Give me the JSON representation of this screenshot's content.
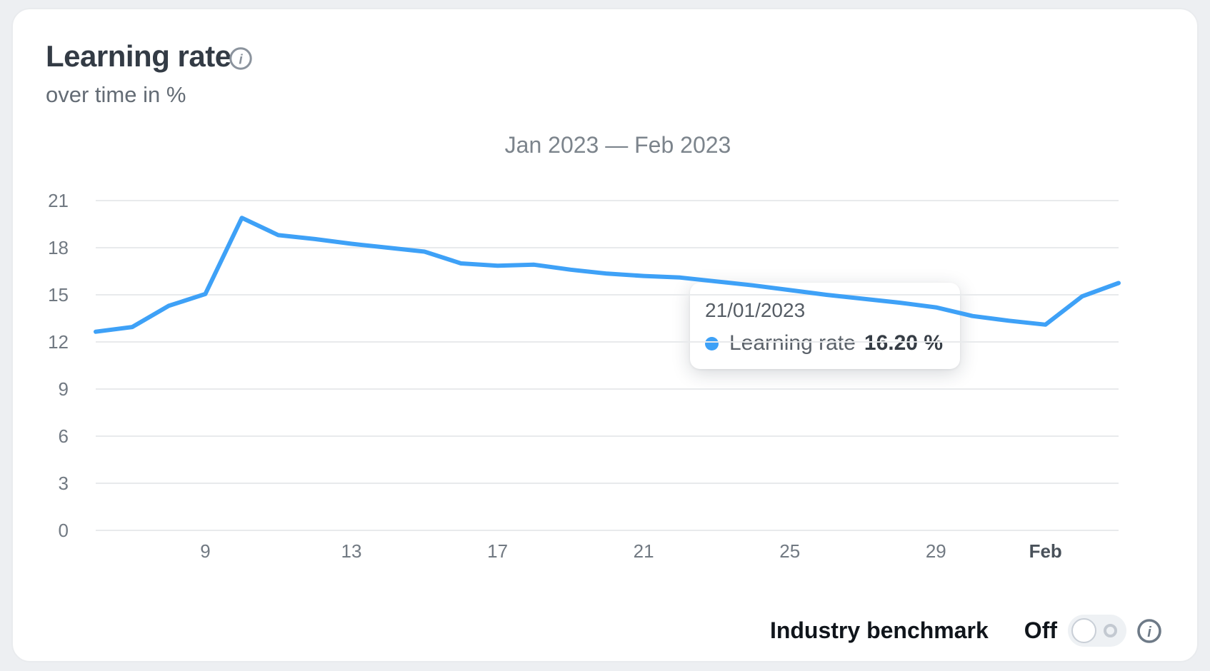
{
  "card": {
    "title": "Learning rate",
    "subtitle": "over time in %"
  },
  "chart_heading": "Jan 2023 — Feb 2023",
  "chart_data": {
    "type": "line",
    "title": "Jan 2023 — Feb 2023",
    "ylabel": "Learning rate (%)",
    "ylim": [
      0,
      21
    ],
    "y_ticks": [
      21,
      18,
      15,
      12,
      9,
      6,
      3,
      0
    ],
    "grid": true,
    "legend_position": "tooltip-only",
    "series": [
      {
        "name": "Learning rate",
        "color": "#3ea1f7",
        "x": [
          "Jan 6",
          "Jan 7",
          "Jan 8",
          "Jan 9",
          "Jan 10",
          "Jan 11",
          "Jan 12",
          "Jan 13",
          "Jan 14",
          "Jan 15",
          "Jan 16",
          "Jan 17",
          "Jan 18",
          "Jan 19",
          "Jan 20",
          "Jan 21",
          "Jan 22",
          "Jan 23",
          "Jan 24",
          "Jan 25",
          "Jan 26",
          "Jan 27",
          "Jan 28",
          "Jan 29",
          "Jan 30",
          "Jan 31",
          "Feb 1",
          "Feb 2",
          "Feb 3"
        ],
        "values": [
          12.65,
          12.95,
          14.3,
          15.05,
          19.9,
          18.8,
          18.55,
          18.25,
          18.0,
          17.75,
          17.0,
          16.85,
          16.92,
          16.6,
          16.35,
          16.2,
          16.1,
          15.85,
          15.6,
          15.3,
          15.0,
          14.75,
          14.5,
          14.2,
          13.65,
          13.35,
          13.1,
          14.9,
          15.75
        ]
      }
    ],
    "x_tick_labels": [
      "9",
      "13",
      "17",
      "21",
      "25",
      "29",
      "Feb"
    ],
    "x_tick_indices": [
      3,
      7,
      11,
      15,
      19,
      23,
      26
    ],
    "colors": {
      "line": "#3ea1f7",
      "grid": "#e8eaec",
      "tick_label": "#717982",
      "month_tick_label": "#49515a"
    }
  },
  "tooltip": {
    "date": "21/01/2023",
    "series": "Learning rate",
    "value": "16.20 %",
    "dot_color": "#3ea1f7"
  },
  "footer": {
    "benchmark_label": "Industry benchmark",
    "toggle_state": "Off"
  },
  "icons": {
    "title_info": "info-icon",
    "footer_info": "info-icon"
  }
}
